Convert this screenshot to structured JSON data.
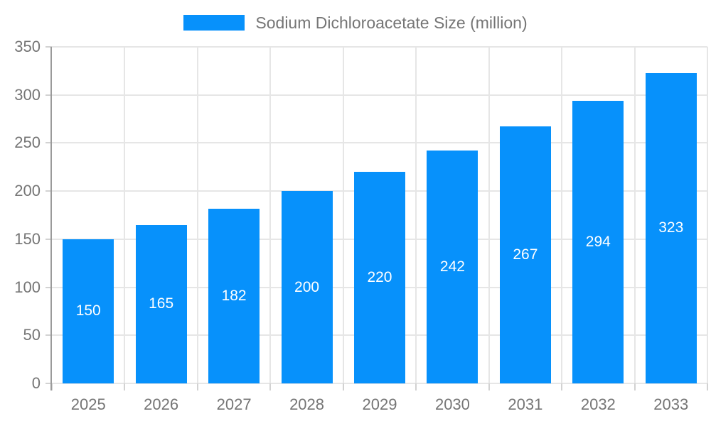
{
  "chart_data": {
    "type": "bar",
    "title": "Sodium Dichloroacetate Size (million)",
    "categories": [
      "2025",
      "2026",
      "2027",
      "2028",
      "2029",
      "2030",
      "2031",
      "2032",
      "2033"
    ],
    "values": [
      150,
      165,
      182,
      200,
      220,
      242,
      267,
      294,
      323
    ],
    "xlabel": "",
    "ylabel": "",
    "ylim": [
      0,
      350
    ],
    "ytick_step": 50,
    "grid": true,
    "legend_position": "top",
    "bar_color": "#0791fb",
    "value_label_color": "#ffffff"
  },
  "colors": {
    "background": "#ffffff",
    "grid": "#e6e6e6",
    "axis_line": "#9a9a9a",
    "tick": "#d2d2d2",
    "tick_label": "#757575",
    "legend_text": "#757575"
  }
}
